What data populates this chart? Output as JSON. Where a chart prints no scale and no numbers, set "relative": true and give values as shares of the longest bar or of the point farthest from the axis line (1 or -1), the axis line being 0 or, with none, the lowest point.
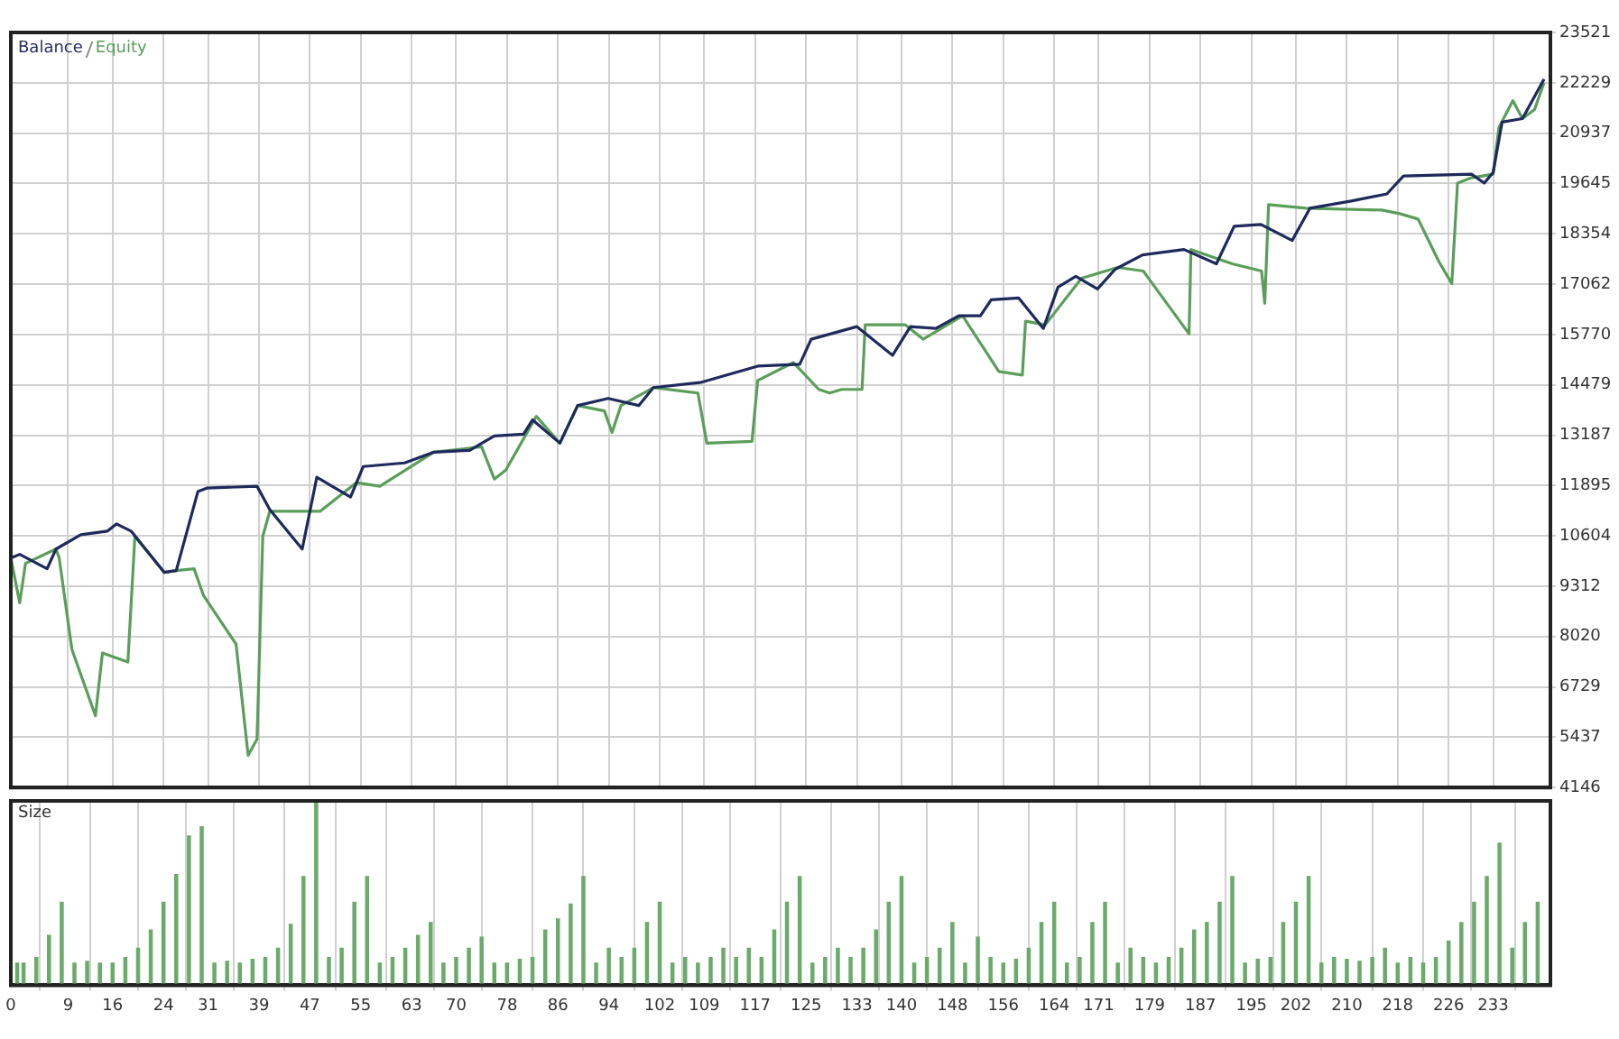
{
  "chart_data": [
    {
      "type": "line",
      "legend": "top left",
      "grid": true,
      "tick_labels": "y",
      "xlim": [
        0,
        242
      ],
      "xticks": [
        0,
        9,
        16,
        24,
        31,
        39,
        47,
        55,
        63,
        70,
        78,
        86,
        94,
        102,
        109,
        117,
        125,
        133,
        140,
        148,
        156,
        164,
        171,
        179,
        187,
        195,
        202,
        210,
        218,
        226,
        233
      ],
      "ylim": [
        4146,
        23521
      ],
      "yticks": [
        4146,
        5437,
        6729,
        8020,
        9312,
        10604,
        11895,
        13187,
        14479,
        15770,
        17062,
        18354,
        19645,
        20937,
        22229,
        23521
      ],
      "series": [
        {
          "name": "Equity",
          "color": "#5a9e5a",
          "x": [
            0,
            1.4,
            2.3,
            7.1,
            7.6,
            9.6,
            13.3,
            14.4,
            18.4,
            19.5,
            24.1,
            26,
            28.8,
            30.3,
            35.4,
            37.3,
            38.7,
            39.6,
            40.7,
            48.6,
            54.3,
            58,
            66.5,
            74,
            76,
            77.8,
            82.6,
            86.3,
            89.1,
            93.3,
            94.5,
            95.9,
            101,
            108,
            109.4,
            116.5,
            117.4,
            123,
            127,
            128.7,
            130.6,
            133.8,
            134.3,
            140.6,
            143.4,
            149.6,
            155.3,
            159,
            159.5,
            162.6,
            168.3,
            174,
            178,
            185.2,
            185.5,
            192,
            196.6,
            197.1,
            197.7,
            203.6,
            215.5,
            218.3,
            221.2,
            224.5,
            226.5,
            227.4,
            229.6,
            233,
            233.9,
            236.1,
            237.6,
            239.5,
            241
          ],
          "values": [
            10037,
            8886,
            9898,
            10266,
            10037,
            7690,
            5987,
            7598,
            7367,
            10589,
            9668,
            9714,
            9760,
            9070,
            7828,
            4974,
            5389,
            10589,
            11233,
            11233,
            11969,
            11877,
            12752,
            12890,
            12062,
            12292,
            13672,
            12982,
            13948,
            13810,
            13258,
            13948,
            14408,
            14270,
            12982,
            13028,
            14592,
            15052,
            14362,
            14270,
            14362,
            14362,
            16020,
            16020,
            15650,
            16250,
            14822,
            14730,
            16112,
            16020,
            17216,
            17492,
            17400,
            15789,
            17952,
            17584,
            17400,
            16571,
            19103,
            19010,
            18964,
            18872,
            18734,
            17630,
            17078,
            19655,
            19793,
            19885,
            21082,
            21772,
            21312,
            21542,
            22232
          ]
        },
        {
          "name": "Balance",
          "color": "#1f2a5c",
          "x": [
            0,
            1.4,
            5.7,
            7.1,
            11,
            15.2,
            16.6,
            18.9,
            24.1,
            26,
            29.4,
            30.8,
            38.7,
            40.7,
            45.8,
            48.1,
            50.5,
            53.4,
            55.4,
            61.9,
            66.5,
            72.1,
            76,
            80.6,
            82,
            86.3,
            89.1,
            93.9,
            98.7,
            101,
            108.6,
            117.4,
            124,
            125.8,
            133,
            138.6,
            141.4,
            145.4,
            149,
            152.4,
            154.1,
            158.4,
            162.3,
            164.6,
            167.4,
            170.8,
            173.6,
            177.9,
            184.4,
            189.5,
            192.3,
            196.5,
            201.4,
            204.2,
            210.7,
            216.3,
            218.9,
            229.6,
            231.6,
            233,
            234.4,
            237.6,
            241
          ],
          "values": [
            10037,
            10130,
            9760,
            10266,
            10635,
            10727,
            10910,
            10727,
            9668,
            9714,
            11740,
            11830,
            11877,
            11279,
            10266,
            12108,
            11877,
            11601,
            12384,
            12476,
            12752,
            12798,
            13166,
            13212,
            13580,
            12982,
            13948,
            14132,
            13948,
            14408,
            14546,
            14960,
            15006,
            15650,
            15973,
            15237,
            15973,
            15927,
            16250,
            16250,
            16663,
            16710,
            15927,
            16986,
            17262,
            16940,
            17446,
            17814,
            17952,
            17584,
            18550,
            18596,
            18182,
            19010,
            19195,
            19379,
            19839,
            19885,
            19655,
            19931,
            21220,
            21312,
            22324
          ]
        }
      ]
    },
    {
      "type": "bar",
      "title": "Size",
      "relative": true,
      "grid": "x",
      "tick_labels": "x",
      "xlim": [
        0,
        242
      ],
      "xticks": [
        0,
        9,
        16,
        24,
        31,
        39,
        47,
        55,
        63,
        70,
        78,
        86,
        94,
        102,
        109,
        117,
        125,
        133,
        140,
        148,
        156,
        164,
        171,
        179,
        187,
        195,
        202,
        210,
        218,
        226,
        233
      ],
      "series": [
        {
          "color": "#6aaa6a",
          "x": [
            1,
            2,
            4,
            6,
            8,
            10,
            12,
            14,
            16,
            18,
            20,
            22,
            24,
            26,
            28,
            30,
            32,
            34,
            36,
            38,
            40,
            42,
            44,
            46,
            48,
            50,
            52,
            54,
            56,
            58,
            60,
            62,
            64,
            66,
            68,
            70,
            72,
            74,
            76,
            78,
            80,
            82,
            84,
            86,
            88,
            90,
            92,
            94,
            96,
            98,
            100,
            102,
            104,
            106,
            108,
            110,
            112,
            114,
            116,
            118,
            120,
            122,
            124,
            126,
            128,
            130,
            132,
            134,
            136,
            138,
            140,
            142,
            144,
            146,
            148,
            150,
            152,
            154,
            156,
            158,
            160,
            162,
            164,
            166,
            168,
            170,
            172,
            174,
            176,
            178,
            180,
            182,
            184,
            186,
            188,
            190,
            192,
            194,
            196,
            198,
            200,
            202,
            204,
            206,
            208,
            210,
            212,
            214,
            216,
            218,
            220,
            222,
            224,
            226,
            228,
            230,
            232,
            234,
            236,
            238,
            240
          ],
          "values": [
            0.12,
            0.12,
            0.15,
            0.27,
            0.45,
            0.12,
            0.13,
            0.12,
            0.12,
            0.15,
            0.2,
            0.3,
            0.45,
            0.6,
            0.81,
            0.86,
            0.12,
            0.13,
            0.12,
            0.14,
            0.15,
            0.2,
            0.33,
            0.59,
            1,
            0.15,
            0.2,
            0.45,
            0.59,
            0.12,
            0.15,
            0.2,
            0.27,
            0.34,
            0.12,
            0.15,
            0.2,
            0.26,
            0.12,
            0.12,
            0.14,
            0.15,
            0.3,
            0.36,
            0.44,
            0.59,
            0.12,
            0.2,
            0.15,
            0.2,
            0.34,
            0.45,
            0.12,
            0.15,
            0.12,
            0.15,
            0.2,
            0.15,
            0.2,
            0.15,
            0.3,
            0.45,
            0.59,
            0.12,
            0.15,
            0.2,
            0.15,
            0.2,
            0.3,
            0.45,
            0.59,
            0.12,
            0.15,
            0.2,
            0.34,
            0.12,
            0.26,
            0.15,
            0.12,
            0.14,
            0.2,
            0.34,
            0.45,
            0.12,
            0.15,
            0.34,
            0.45,
            0.12,
            0.2,
            0.15,
            0.12,
            0.15,
            0.2,
            0.3,
            0.34,
            0.45,
            0.59,
            0.12,
            0.14,
            0.15,
            0.34,
            0.45,
            0.59,
            0.12,
            0.15,
            0.14,
            0.13,
            0.15,
            0.2,
            0.12,
            0.15,
            0.12,
            0.15,
            0.24,
            0.34,
            0.45,
            0.59,
            0.77,
            0.2,
            0.34,
            0.45
          ]
        }
      ]
    }
  ]
}
